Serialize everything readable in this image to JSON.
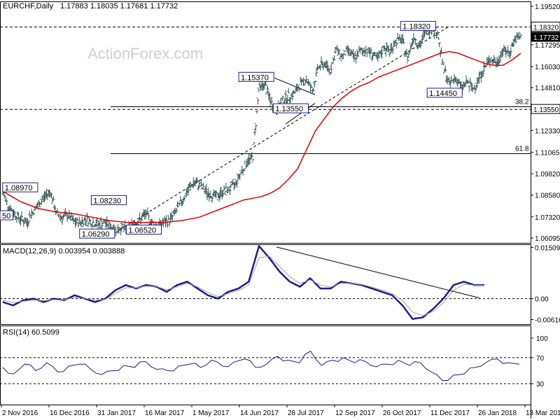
{
  "header": {
    "symbol": "EURCHF,Daily",
    "ohlc": "1.17883 1.18035 1.17681 1.17732"
  },
  "watermark": "ActionForex.com",
  "colors": {
    "bars": "#2f4f4f",
    "ma": "#e00000",
    "macd": "#1c1c8c",
    "signal": "#a0a0a0",
    "grid": "#000000",
    "label_border": "#1c1c8c"
  },
  "chart_data": [
    {
      "type": "ohlc",
      "title": "EURCHF,Daily",
      "ylim": [
        1.06095,
        1.1952
      ],
      "yticks": [
        "1.19520",
        "1.17295",
        "1.16030",
        "1.14810",
        "1.13550",
        "1.12330",
        "1.11065",
        "1.09820",
        "1.08580",
        "1.07320",
        "1.06095"
      ],
      "xticks": [
        "2 Nov 2016",
        "16 Dec 2016",
        "31 Jan 2017",
        "16 Mar 2017",
        "1 May 2017",
        "14 Jun 2017",
        "28 Jul 2017",
        "12 Sep 2017",
        "26 Oct 2017",
        "11 Dec 2017",
        "26 Jan 2018",
        "13 Mar 2018"
      ],
      "close_path": [
        1.087,
        1.079,
        1.075,
        1.072,
        1.07,
        1.076,
        1.08,
        1.085,
        1.088,
        1.075,
        1.073,
        1.074,
        1.07,
        1.07,
        1.072,
        1.07,
        1.069,
        1.07,
        1.068,
        1.066,
        1.067,
        1.065,
        1.07,
        1.071,
        1.075,
        1.07,
        1.068,
        1.07,
        1.071,
        1.076,
        1.082,
        1.088,
        1.093,
        1.092,
        1.088,
        1.086,
        1.085,
        1.088,
        1.089,
        1.092,
        1.099,
        1.105,
        1.108,
        1.147,
        1.15,
        1.14,
        1.135,
        1.141,
        1.143,
        1.145,
        1.15,
        1.153,
        1.146,
        1.16,
        1.162,
        1.158,
        1.17,
        1.166,
        1.17,
        1.165,
        1.169,
        1.17,
        1.168,
        1.164,
        1.172,
        1.169,
        1.175,
        1.176,
        1.165,
        1.178,
        1.172,
        1.18,
        1.183,
        1.18,
        1.16,
        1.15,
        1.154,
        1.148,
        1.151,
        1.147,
        1.154,
        1.16,
        1.165,
        1.162,
        1.17,
        1.168,
        1.176,
        1.1773
      ],
      "ma_path": [
        1.088,
        1.085,
        1.082,
        1.08,
        1.078,
        1.077,
        1.076,
        1.0755,
        1.075,
        1.074,
        1.073,
        1.072,
        1.071,
        1.0705,
        1.07,
        1.07,
        1.07,
        1.07,
        1.07,
        1.0705,
        1.071,
        1.072,
        1.073,
        1.075,
        1.077,
        1.079,
        1.081,
        1.083,
        1.084,
        1.085,
        1.087,
        1.09,
        1.095,
        1.101,
        1.112,
        1.123,
        1.13,
        1.137,
        1.142,
        1.146,
        1.149,
        1.151,
        1.154,
        1.156,
        1.158,
        1.16,
        1.162,
        1.164,
        1.166,
        1.168,
        1.169,
        1.168,
        1.166,
        1.164,
        1.162,
        1.161,
        1.161,
        1.164,
        1.168
      ],
      "annotations": [
        {
          "text": "1.08970",
          "price": 1.0897,
          "pos": 0.005
        },
        {
          "text": "1.08230",
          "price": 1.0823,
          "pos": 0.172
        },
        {
          "text": "1.06290",
          "price": 1.0629,
          "pos": 0.15
        },
        {
          "text": "1.06520",
          "price": 1.0652,
          "pos": 0.238
        },
        {
          "text": "1.15370",
          "price": 1.1537,
          "pos": 0.45
        },
        {
          "text": "1.13550",
          "price": 1.1355,
          "pos": 0.515
        },
        {
          "text": "1.18320",
          "price": 1.1832,
          "pos": 0.755
        },
        {
          "text": "1.14450",
          "price": 1.1445,
          "pos": 0.805
        },
        {
          "text": "50",
          "price": 1.0735,
          "pos": 0.0
        }
      ],
      "levels": [
        {
          "label": "1.18320",
          "price": 1.1832,
          "style": "dashed"
        },
        {
          "label": "1.13550",
          "price": 1.1355,
          "style": "dashed"
        },
        {
          "label": "38.2",
          "price": 1.137,
          "style": "solid"
        },
        {
          "label": "61.8",
          "price": 1.1098,
          "style": "solid"
        }
      ],
      "last_price_label": "1.17732",
      "last_price": 1.1773
    },
    {
      "type": "line",
      "title": "MACD(12,26,9) 0.003954 0.003888",
      "ylim": [
        -0.0075,
        0.016
      ],
      "yticks": [
        "0.015092",
        "0.00",
        "-0.00616"
      ],
      "series": [
        {
          "name": "MACD",
          "values": [
            -0.001,
            -0.002,
            -0.0005,
            0.0,
            -0.001,
            0.0,
            -0.0005,
            0.001,
            0.0,
            -0.001,
            0.0,
            0.0025,
            0.004,
            0.003,
            0.004,
            0.0035,
            0.002,
            0.004,
            0.005,
            0.003,
            0.001,
            0.0,
            0.002,
            0.003,
            0.005,
            0.0155,
            0.012,
            0.008,
            0.005,
            0.0035,
            0.006,
            0.003,
            0.003,
            0.005,
            0.0045,
            0.004,
            0.003,
            0.002,
            0.001,
            -0.002,
            -0.006,
            -0.0055,
            -0.003,
            0.0,
            0.004,
            0.005,
            0.004,
            0.004
          ]
        },
        {
          "name": "Signal",
          "values": [
            -0.0005,
            -0.0012,
            -0.0008,
            -0.0004,
            -0.0006,
            -0.0003,
            -0.0004,
            0.0004,
            0.0001,
            -0.0005,
            -0.0002,
            0.0015,
            0.0032,
            0.0032,
            0.0037,
            0.0036,
            0.0026,
            0.0035,
            0.0045,
            0.0035,
            0.0018,
            0.0006,
            0.0015,
            0.0024,
            0.004,
            0.012,
            0.0125,
            0.0095,
            0.0065,
            0.0045,
            0.0055,
            0.004,
            0.0034,
            0.0045,
            0.0045,
            0.0042,
            0.0034,
            0.0025,
            0.0015,
            -0.0005,
            -0.004,
            -0.005,
            -0.0038,
            -0.0012,
            0.0025,
            0.0042,
            0.004,
            0.0039
          ]
        }
      ]
    },
    {
      "type": "line",
      "title": "RSI(14) 60.5099",
      "ylim": [
        0,
        100
      ],
      "yticks": [
        "100",
        "70",
        "30",
        "0"
      ],
      "series": [
        {
          "name": "RSI",
          "values": [
            55,
            45,
            60,
            50,
            62,
            48,
            57,
            60,
            52,
            44,
            50,
            58,
            55,
            64,
            52,
            50,
            57,
            60,
            55,
            66,
            57,
            63,
            68,
            55,
            60,
            72,
            66,
            62,
            80,
            58,
            66,
            70,
            62,
            64,
            56,
            60,
            66,
            58,
            62,
            48,
            35,
            43,
            45,
            55,
            63,
            68,
            62,
            60
          ]
        }
      ]
    }
  ]
}
